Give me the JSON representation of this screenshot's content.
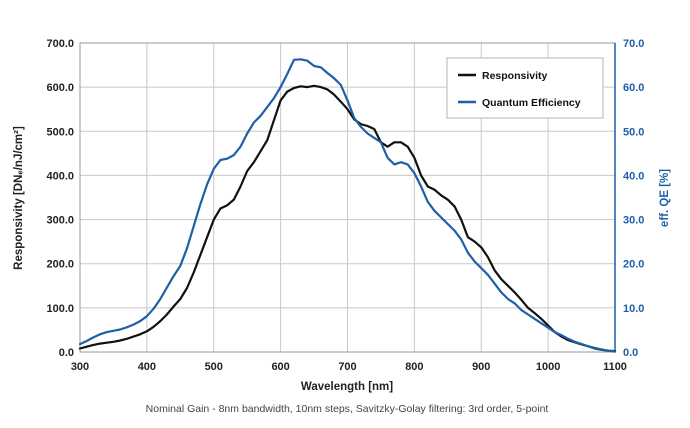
{
  "chart_data": {
    "type": "line",
    "title": "",
    "caption": "Nominal Gain - 8nm bandwidth, 10nm steps, Savitzky-Golay filtering: 3rd order, 5-point",
    "xlabel": "Wavelength [nm]",
    "ylabel": "Responsivity [DNₑ/nJ/cm²]",
    "y2label": "eff. QE [%]",
    "xlim": [
      300,
      1100
    ],
    "ylim": [
      0,
      700
    ],
    "y2lim": [
      0,
      70
    ],
    "xticks": [
      "300",
      "400",
      "500",
      "600",
      "700",
      "800",
      "900",
      "1000",
      "1100"
    ],
    "yticks": [
      "0.0",
      "100.0",
      "200.0",
      "300.0",
      "400.0",
      "500.0",
      "600.0",
      "700.0"
    ],
    "y2ticks": [
      "0.0",
      "10.0",
      "20.0",
      "30.0",
      "40.0",
      "50.0",
      "60.0",
      "70.0"
    ],
    "grid": true,
    "legend_position": "top-right",
    "colors": {
      "responsivity": "#111111",
      "qe": "#1f5fa8",
      "grid": "#c8c8c8"
    },
    "series": [
      {
        "name": "Responsivity",
        "axis": "left",
        "x": [
          300,
          310,
          320,
          330,
          340,
          350,
          360,
          370,
          380,
          390,
          400,
          410,
          420,
          430,
          440,
          450,
          460,
          470,
          480,
          490,
          500,
          510,
          520,
          530,
          540,
          550,
          560,
          570,
          580,
          590,
          600,
          610,
          620,
          630,
          640,
          650,
          660,
          670,
          680,
          690,
          700,
          710,
          720,
          730,
          740,
          750,
          760,
          770,
          780,
          790,
          800,
          810,
          820,
          830,
          840,
          850,
          860,
          870,
          880,
          890,
          900,
          910,
          920,
          930,
          940,
          950,
          960,
          970,
          980,
          990,
          1000,
          1010,
          1020,
          1030,
          1040,
          1050,
          1060,
          1070,
          1080,
          1090,
          1100
        ],
        "values": [
          8,
          12,
          16,
          19,
          21,
          23,
          26,
          30,
          35,
          40,
          47,
          57,
          70,
          85,
          103,
          120,
          145,
          180,
          220,
          260,
          300,
          325,
          332,
          345,
          375,
          410,
          430,
          455,
          480,
          525,
          570,
          590,
          598,
          602,
          600,
          603,
          600,
          595,
          583,
          567,
          550,
          527,
          516,
          512,
          505,
          475,
          465,
          475,
          475,
          465,
          440,
          400,
          375,
          368,
          355,
          345,
          330,
          300,
          260,
          250,
          237,
          215,
          185,
          165,
          150,
          135,
          118,
          100,
          88,
          75,
          60,
          45,
          35,
          27,
          22,
          17,
          13,
          8,
          5,
          3,
          2
        ]
      },
      {
        "name": "Quantum Efficiency",
        "axis": "right",
        "x": [
          300,
          310,
          320,
          330,
          340,
          350,
          360,
          370,
          380,
          390,
          400,
          410,
          420,
          430,
          440,
          450,
          460,
          470,
          480,
          490,
          500,
          510,
          520,
          530,
          540,
          550,
          560,
          570,
          580,
          590,
          600,
          610,
          620,
          630,
          640,
          650,
          660,
          670,
          680,
          690,
          700,
          710,
          720,
          730,
          740,
          750,
          760,
          770,
          780,
          790,
          800,
          810,
          820,
          830,
          840,
          850,
          860,
          870,
          880,
          890,
          900,
          910,
          920,
          930,
          940,
          950,
          960,
          970,
          980,
          990,
          1000,
          1010,
          1020,
          1030,
          1040,
          1050,
          1060,
          1070,
          1080,
          1090,
          1100
        ],
        "values": [
          1.8,
          2.5,
          3.3,
          4.0,
          4.5,
          4.8,
          5.1,
          5.6,
          6.2,
          7.0,
          8.1,
          9.8,
          12.0,
          14.6,
          17.2,
          19.5,
          23.5,
          28.5,
          33.5,
          38.0,
          41.5,
          43.5,
          43.8,
          44.6,
          46.5,
          49.5,
          52.0,
          53.5,
          55.5,
          57.5,
          60.0,
          63.0,
          66.2,
          66.3,
          66.0,
          64.8,
          64.5,
          63.2,
          62.0,
          60.5,
          57.0,
          53.0,
          51.0,
          49.5,
          48.5,
          47.5,
          44.0,
          42.5,
          43.0,
          42.5,
          40.5,
          37.5,
          34.0,
          32.0,
          30.5,
          29.0,
          27.5,
          25.5,
          22.5,
          20.5,
          19.0,
          17.5,
          15.5,
          13.5,
          12.0,
          11.0,
          9.5,
          8.5,
          7.5,
          6.5,
          5.5,
          4.5,
          3.8,
          3.0,
          2.3,
          1.8,
          1.3,
          0.9,
          0.6,
          0.3,
          0.1
        ]
      }
    ]
  }
}
